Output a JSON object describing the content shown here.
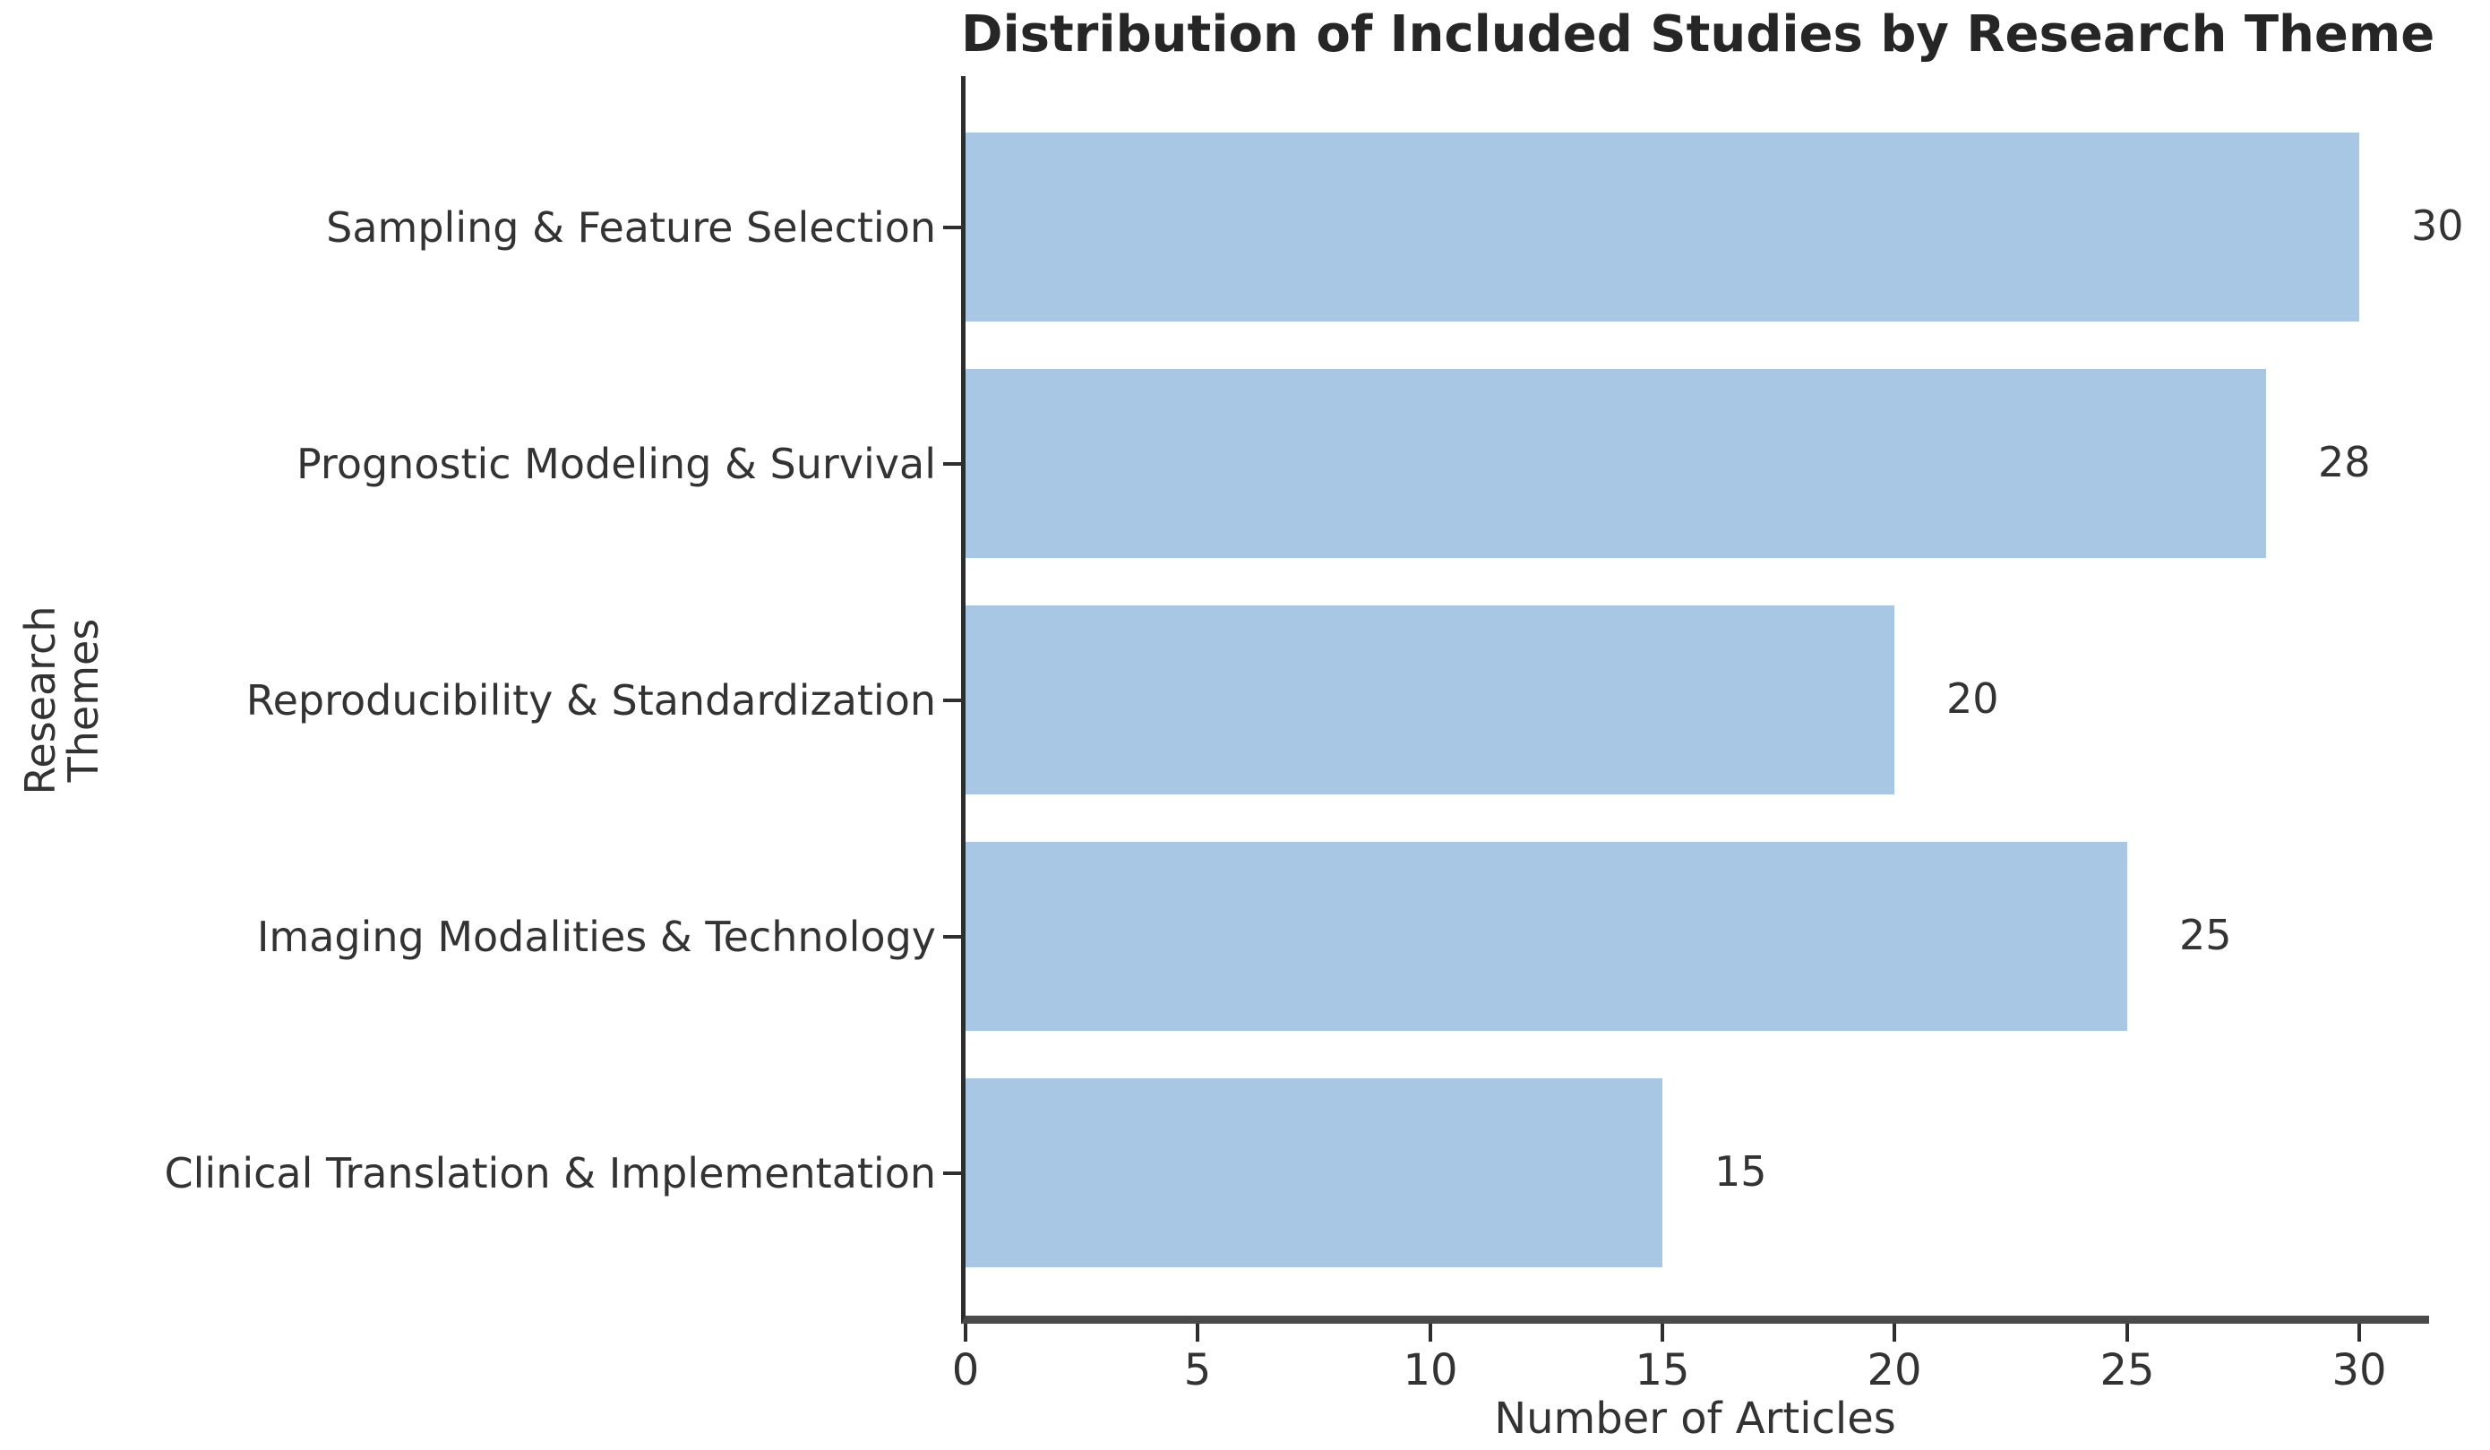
{
  "chart_data": {
    "type": "bar",
    "orientation": "horizontal",
    "title": "Distribution of Included Studies by Research Theme",
    "categories": [
      "Sampling & Feature Selection",
      "Prognostic Modeling & Survival",
      "Reproducibility & Standardization",
      "Imaging Modalities & Technology",
      "Clinical Translation & Implementation"
    ],
    "values": [
      30,
      28,
      20,
      25,
      15
    ],
    "value_labels": [
      "30",
      "28",
      "20",
      "25",
      "15"
    ],
    "xlabel": "Number of Articles",
    "ylabel": "Research Themes",
    "xticks": [
      0,
      5,
      10,
      15,
      20,
      25,
      30
    ],
    "xlim": [
      0,
      31.5
    ],
    "grid": false,
    "legend": "none",
    "bar_color": "#a8c7e5",
    "text_color": "#333333",
    "title_color": "#262626",
    "spine_color": "#2e2e2e"
  }
}
